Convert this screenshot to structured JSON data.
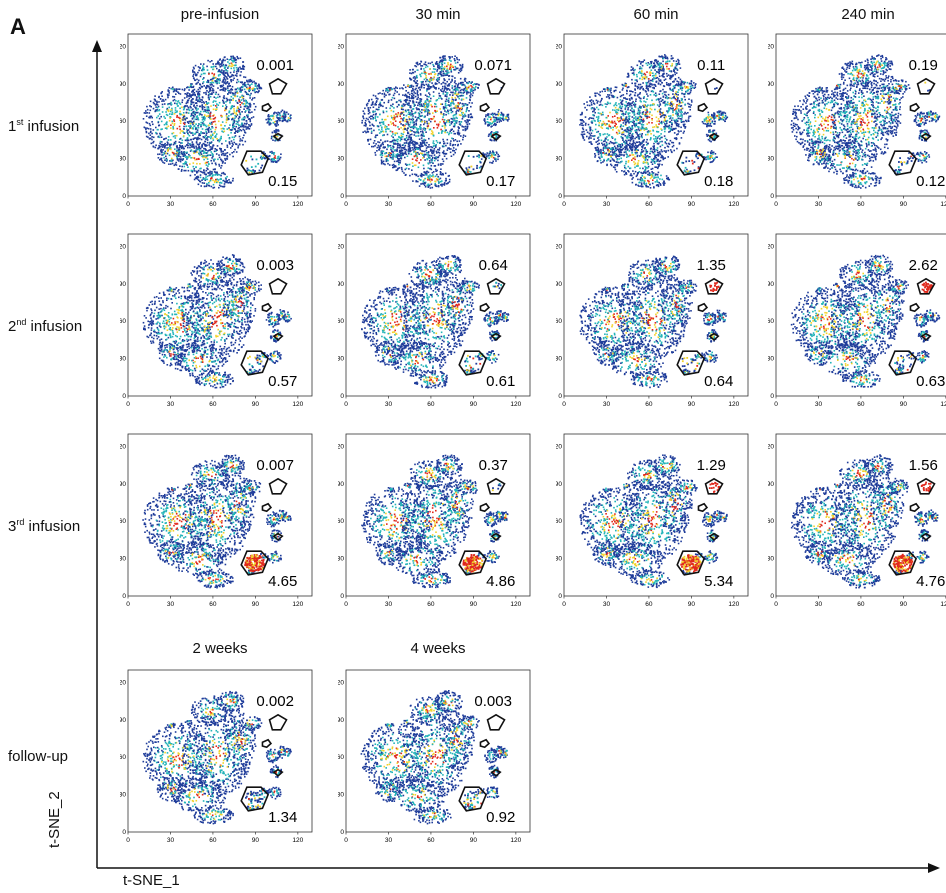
{
  "panel_label": "A",
  "colors": {
    "density_low": "#1f3c9a",
    "density_mid": "#22b3b8",
    "density_high": "#f2d22a",
    "density_peak": "#e0281c",
    "gate": "#111111"
  },
  "chart_data": {
    "type": "scatter",
    "description_kind": "tSNE density plots with gated populations",
    "xlabel": "t-SNE_1",
    "ylabel": "t-SNE_2",
    "xlim": [
      0,
      130
    ],
    "ylim": [
      0,
      130
    ],
    "xticks": [
      0,
      30,
      60,
      90,
      120
    ],
    "yticks": [
      0,
      30,
      60,
      90,
      120
    ],
    "rows": [
      {
        "label_main": "1",
        "label_sup": "st",
        "label_rest": " infusion"
      },
      {
        "label_main": "2",
        "label_sup": "nd",
        "label_rest": " infusion"
      },
      {
        "label_main": "3",
        "label_sup": "rd",
        "label_rest": " infusion"
      },
      {
        "label_main": "follow-up",
        "label_sup": "",
        "label_rest": ""
      }
    ],
    "columns": [
      "pre-infusion",
      "30 min",
      "60 min",
      "240 min"
    ],
    "followup_columns": [
      "2 weeks",
      "4 weeks"
    ],
    "panels": [
      {
        "row": 0,
        "col": 0,
        "upper_gate_pct": "0.001",
        "lower_gate_pct": "0.15"
      },
      {
        "row": 0,
        "col": 1,
        "upper_gate_pct": "0.071",
        "lower_gate_pct": "0.17"
      },
      {
        "row": 0,
        "col": 2,
        "upper_gate_pct": "0.11",
        "lower_gate_pct": "0.18"
      },
      {
        "row": 0,
        "col": 3,
        "upper_gate_pct": "0.19",
        "lower_gate_pct": "0.12"
      },
      {
        "row": 1,
        "col": 0,
        "upper_gate_pct": "0.003",
        "lower_gate_pct": "0.57"
      },
      {
        "row": 1,
        "col": 1,
        "upper_gate_pct": "0.64",
        "lower_gate_pct": "0.61"
      },
      {
        "row": 1,
        "col": 2,
        "upper_gate_pct": "1.35",
        "lower_gate_pct": "0.64"
      },
      {
        "row": 1,
        "col": 3,
        "upper_gate_pct": "2.62",
        "lower_gate_pct": "0.63"
      },
      {
        "row": 2,
        "col": 0,
        "upper_gate_pct": "0.007",
        "lower_gate_pct": "4.65"
      },
      {
        "row": 2,
        "col": 1,
        "upper_gate_pct": "0.37",
        "lower_gate_pct": "4.86"
      },
      {
        "row": 2,
        "col": 2,
        "upper_gate_pct": "1.29",
        "lower_gate_pct": "5.34"
      },
      {
        "row": 2,
        "col": 3,
        "upper_gate_pct": "1.56",
        "lower_gate_pct": "4.76"
      },
      {
        "row": 3,
        "col": 0,
        "upper_gate_pct": "0.002",
        "lower_gate_pct": "1.34"
      },
      {
        "row": 3,
        "col": 1,
        "upper_gate_pct": "0.003",
        "lower_gate_pct": "0.92"
      }
    ]
  }
}
